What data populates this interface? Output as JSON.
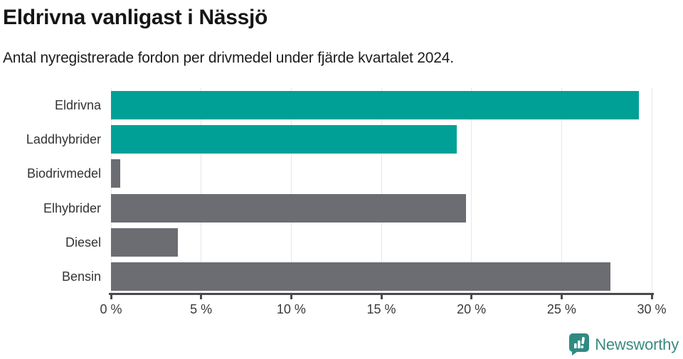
{
  "header": {
    "title": "Eldrivna vanligast i Nässjö",
    "subtitle": "Antal nyregistrerade fordon per drivmedel under fjärde kvartalet 2024."
  },
  "chart_data": {
    "type": "bar",
    "orientation": "horizontal",
    "title": "Eldrivna vanligast i Nässjö",
    "subtitle": "Antal nyregistrerade fordon per drivmedel under fjärde kvartalet 2024.",
    "categories": [
      "Eldrivna",
      "Laddhybrider",
      "Biodrivmedel",
      "Elhybrider",
      "Diesel",
      "Bensin"
    ],
    "values": [
      29.3,
      19.2,
      0.5,
      19.7,
      3.7,
      27.7
    ],
    "unit": "%",
    "bar_colors": [
      "#00a097",
      "#00a097",
      "#6c6d72",
      "#6c6d72",
      "#6c6d72",
      "#6c6d72"
    ],
    "highlight_color": "#00a097",
    "default_color": "#6c6d72",
    "xlim": [
      0,
      30
    ],
    "x_ticks": [
      0,
      5,
      10,
      15,
      20,
      25,
      30
    ],
    "x_tick_labels": [
      "0 %",
      "5 %",
      "10 %",
      "15 %",
      "20 %",
      "25 %",
      "30 %"
    ],
    "grid": "vertical",
    "gridline_color": "#e7e7e7",
    "axis_color": "#4a4a4c",
    "legend": "none"
  },
  "footer": {
    "brand": "Newsworthy",
    "brand_color": "#3a8a81",
    "logo_icon": "newsworthy-bar-chart-bubble-icon",
    "logo_fill": "#2f8b82"
  }
}
